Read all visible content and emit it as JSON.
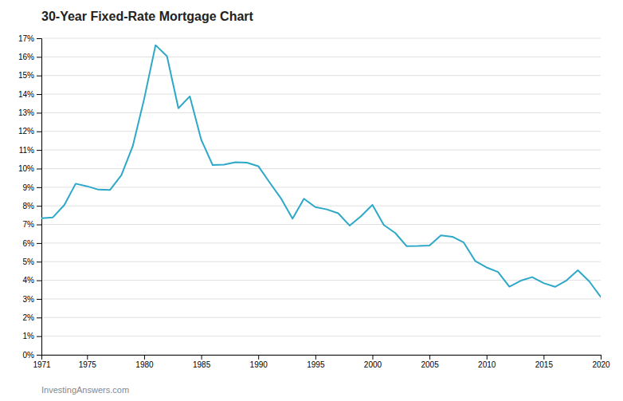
{
  "chart_data": {
    "type": "line",
    "title": "30-Year Fixed-Rate Mortgage Chart",
    "annotations": [
      "InvestingAnswers.com"
    ],
    "x": [
      1971,
      1972,
      1973,
      1974,
      1975,
      1976,
      1977,
      1978,
      1979,
      1980,
      1981,
      1982,
      1983,
      1984,
      1985,
      1986,
      1987,
      1988,
      1989,
      1990,
      1991,
      1992,
      1993,
      1994,
      1995,
      1996,
      1997,
      1998,
      1999,
      2000,
      2001,
      2002,
      2003,
      2004,
      2005,
      2006,
      2007,
      2008,
      2009,
      2010,
      2011,
      2012,
      2013,
      2014,
      2015,
      2016,
      2017,
      2018,
      2019,
      2020
    ],
    "values": [
      7.33,
      7.38,
      8.04,
      9.19,
      9.05,
      8.87,
      8.85,
      9.64,
      11.2,
      13.74,
      16.63,
      16.04,
      13.24,
      13.88,
      11.55,
      10.19,
      10.21,
      10.34,
      10.32,
      10.13,
      9.25,
      8.39,
      7.31,
      8.38,
      7.93,
      7.81,
      7.6,
      6.94,
      7.44,
      8.05,
      6.97,
      6.54,
      5.83,
      5.84,
      5.87,
      6.41,
      6.34,
      6.03,
      5.04,
      4.69,
      4.45,
      3.66,
      3.98,
      4.17,
      3.85,
      3.65,
      3.99,
      4.54,
      3.94,
      3.11
    ],
    "color": "#2DA8C8",
    "xlim": [
      1971,
      2020
    ],
    "ylim": [
      0,
      17
    ],
    "xticks": [
      1971,
      1975,
      1980,
      1985,
      1990,
      1995,
      2000,
      2005,
      2010,
      2015,
      2020
    ],
    "yticks": [
      {
        "value": 0,
        "label": "0%"
      },
      {
        "value": 1,
        "label": "1%"
      },
      {
        "value": 2,
        "label": "2%"
      },
      {
        "value": 3,
        "label": "3%"
      },
      {
        "value": 4,
        "label": "4%"
      },
      {
        "value": 5,
        "label": "5%"
      },
      {
        "value": 6,
        "label": "6%"
      },
      {
        "value": 7,
        "label": "7%"
      },
      {
        "value": 8,
        "label": "8%"
      },
      {
        "value": 9,
        "label": "9%"
      },
      {
        "value": 10,
        "label": "10%"
      },
      {
        "value": 11,
        "label": "11%"
      },
      {
        "value": 12,
        "label": "12%"
      },
      {
        "value": 13,
        "label": "13%"
      },
      {
        "value": 14,
        "label": "14%"
      },
      {
        "value": 15,
        "label": "15%"
      },
      {
        "value": 16,
        "label": "16%"
      },
      {
        "value": 17,
        "label": "17%"
      }
    ],
    "grid": true
  }
}
